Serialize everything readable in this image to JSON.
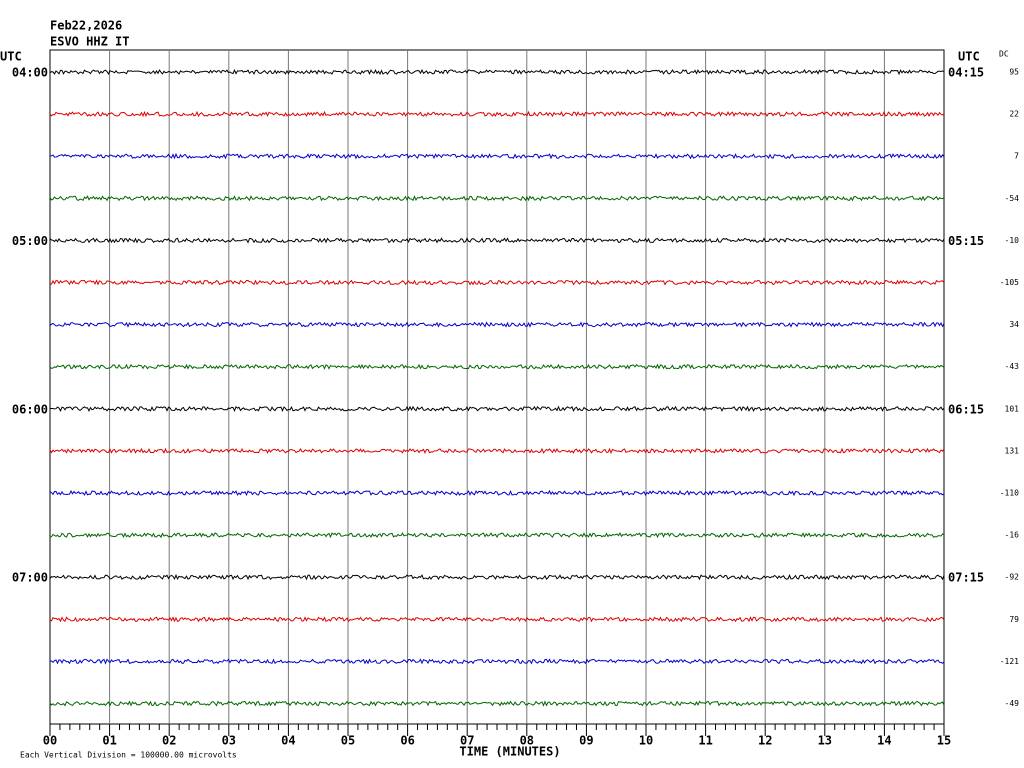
{
  "header": {
    "date": "Feb22,2026",
    "station": "ESVO HHZ IT"
  },
  "left_label": "UTC",
  "right_label": "UTC",
  "dc_label": "DC",
  "rows": [
    {
      "left": "04:00",
      "right": "04:15",
      "dc": 95,
      "color": "#000000"
    },
    {
      "dc": 22,
      "color": "#dd0000"
    },
    {
      "dc": 7,
      "color": "#0000cc"
    },
    {
      "dc": -54,
      "color": "#006600"
    },
    {
      "left": "05:00",
      "right": "05:15",
      "dc": -10,
      "color": "#000000"
    },
    {
      "dc": -105,
      "color": "#dd0000"
    },
    {
      "dc": 34,
      "color": "#0000cc"
    },
    {
      "dc": -43,
      "color": "#006600"
    },
    {
      "left": "06:00",
      "right": "06:15",
      "dc": 101,
      "color": "#000000"
    },
    {
      "dc": 131,
      "color": "#dd0000"
    },
    {
      "dc": -110,
      "color": "#0000cc"
    },
    {
      "dc": -16,
      "color": "#006600"
    },
    {
      "left": "07:00",
      "right": "07:15",
      "dc": -92,
      "color": "#000000"
    },
    {
      "dc": 79,
      "color": "#dd0000"
    },
    {
      "dc": -121,
      "color": "#0000cc"
    },
    {
      "dc": -49,
      "color": "#006600"
    }
  ],
  "x_axis": {
    "ticks": [
      "00",
      "01",
      "02",
      "03",
      "04",
      "05",
      "06",
      "07",
      "08",
      "09",
      "10",
      "11",
      "12",
      "13",
      "14",
      "15"
    ],
    "label": "TIME (MINUTES)"
  },
  "footer": "Each Vertical Division = 100000.00 microvolts"
}
